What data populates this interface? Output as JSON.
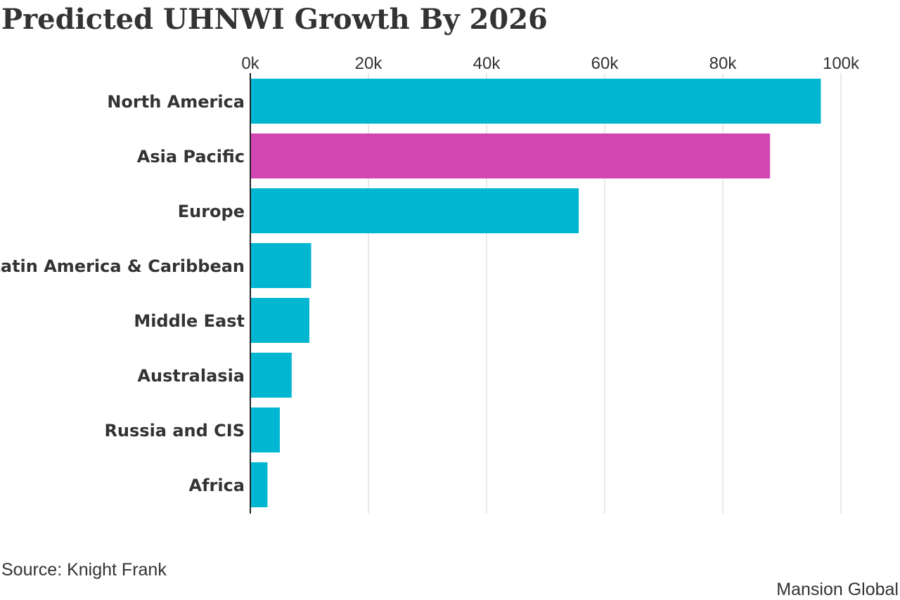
{
  "title": "Predicted UHNWI Growth By 2026",
  "source": "Source: Knight Frank",
  "credit": "Mansion Global",
  "colors": {
    "default_bar": "#00b6d1",
    "highlight_bar": "#d246b2",
    "gridline": "#d3d3d3",
    "axis": "#222222",
    "text": "#333333"
  },
  "chart_data": {
    "type": "bar",
    "orientation": "horizontal",
    "title": "Predicted UHNWI Growth By 2026",
    "categories": [
      "North America",
      "Asia Pacific",
      "Europe",
      "Latin America & Caribbean",
      "Middle East",
      "Australasia",
      "Russia and CIS",
      "Africa"
    ],
    "values": [
      96600,
      88000,
      55600,
      10300,
      10000,
      7000,
      5000,
      2900
    ],
    "highlight": [
      "Asia Pacific"
    ],
    "xlim": [
      0,
      100000
    ],
    "xticks": [
      0,
      20000,
      40000,
      60000,
      80000,
      100000
    ],
    "xtick_labels": [
      "0k",
      "20k",
      "40k",
      "60k",
      "80k",
      "100k"
    ],
    "axis_position": "top",
    "grid": true,
    "legend": false,
    "xlabel": "",
    "ylabel": ""
  }
}
